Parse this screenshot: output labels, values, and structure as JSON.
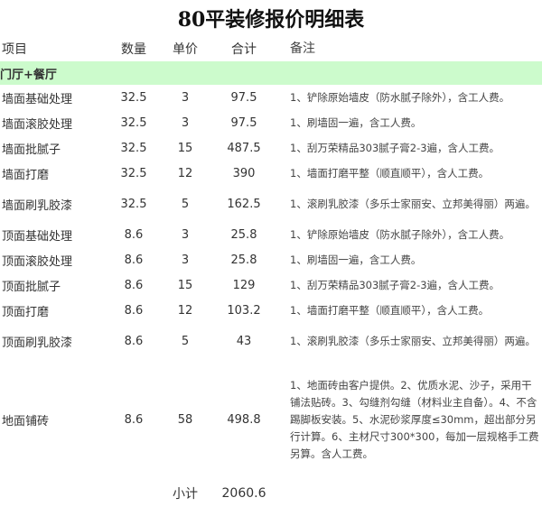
{
  "title": "80平装修报价明细表",
  "headers": [
    "项目",
    "数量",
    "单价",
    "合计",
    "备注"
  ],
  "section": "门厅+餐厅",
  "rows": [
    {
      "item": "墙面基础处理",
      "qty": "32.5",
      "price": "3",
      "total": "97.5",
      "note": "1、铲除原始墙皮（防水腻子除外），含工人费。"
    },
    {
      "item": "墙面滚胶处理",
      "qty": "32.5",
      "price": "3",
      "total": "97.5",
      "note": "1、刷墙固一遍，含工人费。"
    },
    {
      "item": "墙面批腻子",
      "qty": "32.5",
      "price": "15",
      "total": "487.5",
      "note": "1、刮万荣精品303腻子膏2-3遍，含人工费。"
    },
    {
      "item": "墙面打磨",
      "qty": "32.5",
      "price": "12",
      "total": "390",
      "note": "1、墙面打磨平整（顺直顺平），含人工费。"
    },
    {
      "item": "墙面刷乳胶漆",
      "qty": "32.5",
      "price": "5",
      "total": "162.5",
      "note": "1、滚刷乳胶漆（多乐士家丽安、立邦美得丽）两遍。"
    },
    {
      "item": "顶面基础处理",
      "qty": "8.6",
      "price": "3",
      "total": "25.8",
      "note": "1、铲除原始墙皮（防水腻子除外），含工人费。"
    },
    {
      "item": "顶面滚胶处理",
      "qty": "8.6",
      "price": "3",
      "total": "25.8",
      "note": "1、刷墙固一遍，含工人费。"
    },
    {
      "item": "顶面批腻子",
      "qty": "8.6",
      "price": "15",
      "total": "129",
      "note": "1、刮万荣精品303腻子膏2-3遍，含人工费。"
    },
    {
      "item": "顶面打磨",
      "qty": "8.6",
      "price": "12",
      "total": "103.2",
      "note": "1、墙面打磨平整（顺直顺平），含人工费。"
    },
    {
      "item": "顶面刷乳胶漆",
      "qty": "8.6",
      "price": "5",
      "total": "43",
      "note": "1、滚刷乳胶漆（多乐士家丽安、立邦美得丽）两遍。"
    },
    {
      "item": "地面铺砖",
      "qty": "8.6",
      "price": "58",
      "total": "498.8",
      "note": "1、地面砖由客户提供。2、优质水泥、沙子，采用干铺法贴砖。3、勾缝剂勾缝（材料业主自备）。4、不含踢脚板安装。5、水泥砂浆厚度≤30mm，超出部分另行计算。6、主材尺寸300*300，每加一层规格手工费另算。含人工费。"
    }
  ],
  "subtotal_label": "小计",
  "subtotal": "2060.6",
  "colors": {
    "section_bg": "#ccfbcc"
  }
}
